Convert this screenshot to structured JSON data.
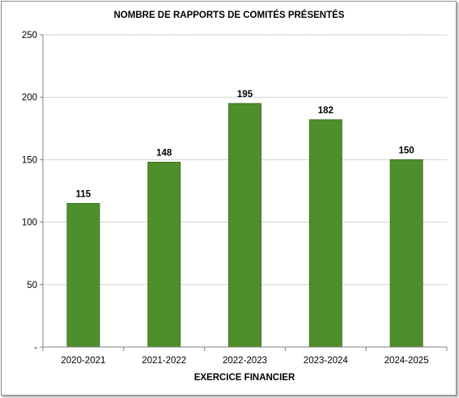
{
  "chart_data": {
    "type": "bar",
    "title": "NOMBRE DE RAPPORTS DE COMITÉS PRÉSENTÉS",
    "xlabel": "EXERCICE FINANCIER",
    "ylabel": "",
    "categories": [
      "2020-2021",
      "2021-2022",
      "2022-2023",
      "2023-2024",
      "2024-2025"
    ],
    "values": [
      115,
      148,
      195,
      182,
      150
    ],
    "data_labels": [
      "115",
      "148",
      "195",
      "182",
      "150"
    ],
    "ylim": [
      0,
      250
    ],
    "yticks": [
      0,
      50,
      100,
      150,
      200,
      250
    ],
    "ytick_labels": [
      "-",
      "50",
      "100",
      "150",
      "200",
      "250"
    ],
    "grid": true,
    "legend": "none",
    "colors": {
      "bar": "#4f8f2b",
      "bar_edge": "#3d7320",
      "grid": "#a6a6a6"
    }
  }
}
